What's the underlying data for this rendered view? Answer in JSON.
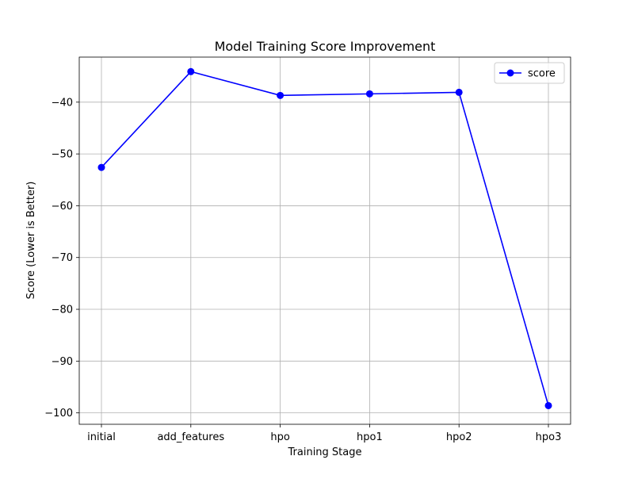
{
  "chart_data": {
    "type": "line",
    "title": "Model Training Score Improvement",
    "xlabel": "Training Stage",
    "ylabel": "Score (Lower is Better)",
    "categories": [
      "initial",
      "add_features",
      "hpo",
      "hpo1",
      "hpo2",
      "hpo3"
    ],
    "series": [
      {
        "name": "score",
        "color": "#0000ff",
        "marker": "circle",
        "values": [
          -52.6,
          -34.1,
          -38.7,
          -38.4,
          -38.1,
          -98.6
        ]
      }
    ],
    "ylim": [
      -102.2,
      -31.3
    ],
    "yticks": [
      -100,
      -90,
      -80,
      -70,
      -60,
      -50,
      -40
    ],
    "ytick_labels": [
      "−100",
      "−90",
      "−80",
      "−70",
      "−60",
      "−50",
      "−40"
    ],
    "grid": true,
    "legend": "top-right"
  }
}
